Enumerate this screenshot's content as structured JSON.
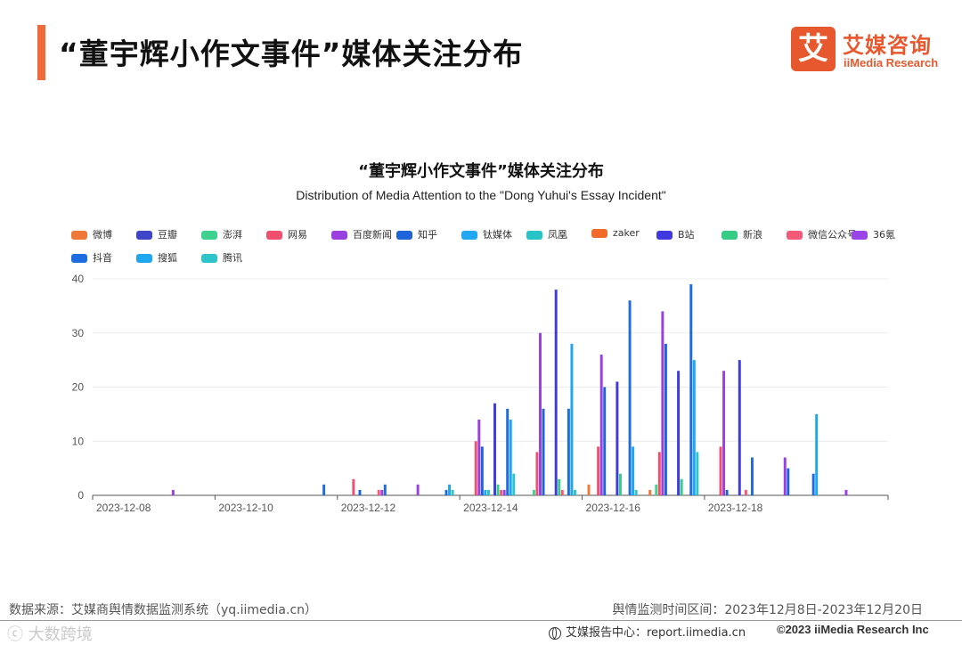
{
  "header": {
    "title": "“董宇辉小作文事件”媒体关注分布",
    "logo_mark": "艾",
    "logo_cn": "艾媒咨询",
    "logo_en": "iiMedia Research"
  },
  "footer": {
    "source": "数据来源：艾媒商舆情数据监测系统（yq.iimedia.cn）",
    "period": "舆情监测时间区间：2023年12月8日-2023年12月20日",
    "watermark": "ⓒ 大数跨境",
    "center": "艾媒报告中心：report.iimedia.cn",
    "copyright": "©2023  iiMedia Research  Inc"
  },
  "chart_data": {
    "type": "bar",
    "title": "“董宇辉小作文事件”媒体关注分布",
    "subtitle": "Distribution of Media Attention to the \"Dong Yuhui's Essay Incident\"",
    "xlabel": "",
    "ylabel": "",
    "ylim": [
      0,
      40
    ],
    "yticks": [
      0,
      10,
      20,
      30,
      40
    ],
    "grid": true,
    "legend_position": "top",
    "categories": [
      "2023-12-08",
      "2023-12-09",
      "2023-12-10",
      "2023-12-11",
      "2023-12-12",
      "2023-12-13",
      "2023-12-14",
      "2023-12-15",
      "2023-12-16",
      "2023-12-17",
      "2023-12-18",
      "2023-12-19",
      "2023-12-20"
    ],
    "x_tick_labels": [
      "2023-12-08",
      "2023-12-10",
      "2023-12-12",
      "2023-12-14",
      "2023-12-16",
      "2023-12-18"
    ],
    "series": [
      {
        "name": "微博",
        "color": "#f07838",
        "values": [
          0,
          0,
          0,
          0,
          0,
          0,
          0,
          0,
          2,
          1,
          0,
          0,
          0
        ]
      },
      {
        "name": "豆瓣",
        "color": "#3e45c8",
        "values": [
          0,
          0,
          0,
          0,
          0,
          0,
          0,
          0,
          0,
          0,
          0,
          0,
          0
        ]
      },
      {
        "name": "澎湃",
        "color": "#3ed18f",
        "values": [
          0,
          0,
          0,
          0,
          0,
          0,
          0,
          1,
          0,
          2,
          0,
          0,
          0
        ]
      },
      {
        "name": "网易",
        "color": "#f0506e",
        "values": [
          0,
          0,
          0,
          0,
          3,
          0,
          10,
          8,
          9,
          8,
          9,
          0,
          0
        ]
      },
      {
        "name": "百度新闻",
        "color": "#9b3fe0",
        "values": [
          0,
          1,
          0,
          0,
          0,
          2,
          14,
          30,
          26,
          34,
          23,
          7,
          1
        ]
      },
      {
        "name": "知乎",
        "color": "#1e64d8",
        "values": [
          0,
          0,
          0,
          0,
          1,
          0,
          9,
          16,
          20,
          28,
          1,
          5,
          0
        ]
      },
      {
        "name": "钛媒体",
        "color": "#22a8f0",
        "values": [
          0,
          0,
          0,
          0,
          0,
          0,
          1,
          0,
          0,
          0,
          0,
          0,
          0
        ]
      },
      {
        "name": "凤凰",
        "color": "#26c3c7",
        "values": [
          0,
          0,
          0,
          0,
          0,
          0,
          1,
          0,
          0,
          0,
          0,
          0,
          0
        ]
      },
      {
        "name": "zaker",
        "color": "#f06a28",
        "values": [
          0,
          0,
          0,
          0,
          0,
          0,
          0,
          0,
          0,
          0,
          0,
          0,
          0
        ]
      },
      {
        "name": "B站",
        "color": "#3e3adf",
        "values": [
          0,
          0,
          0,
          0,
          0,
          0,
          17,
          38,
          21,
          23,
          25,
          0,
          0
        ]
      },
      {
        "name": "新浪",
        "color": "#36cc84",
        "values": [
          0,
          0,
          0,
          0,
          0,
          0,
          2,
          3,
          4,
          3,
          0,
          0,
          0
        ]
      },
      {
        "name": "微信公众号",
        "color": "#f25a78",
        "values": [
          0,
          0,
          0,
          0,
          1,
          0,
          1,
          1,
          0,
          0,
          1,
          0,
          0
        ]
      },
      {
        "name": "36氪",
        "color": "#9a44e8",
        "values": [
          0,
          0,
          0,
          0,
          1,
          0,
          1,
          0,
          0,
          0,
          0,
          0,
          0
        ]
      },
      {
        "name": "抖音",
        "color": "#1f6be0",
        "values": [
          0,
          0,
          0,
          2,
          2,
          1,
          16,
          16,
          36,
          39,
          7,
          4,
          0
        ]
      },
      {
        "name": "搜狐",
        "color": "#1ea6ee",
        "values": [
          0,
          0,
          0,
          0,
          0,
          2,
          14,
          28,
          9,
          25,
          0,
          15,
          0
        ]
      },
      {
        "name": "腾讯",
        "color": "#2ec4c9",
        "values": [
          0,
          0,
          0,
          0,
          0,
          1,
          4,
          1,
          1,
          8,
          0,
          0,
          0
        ]
      }
    ]
  }
}
